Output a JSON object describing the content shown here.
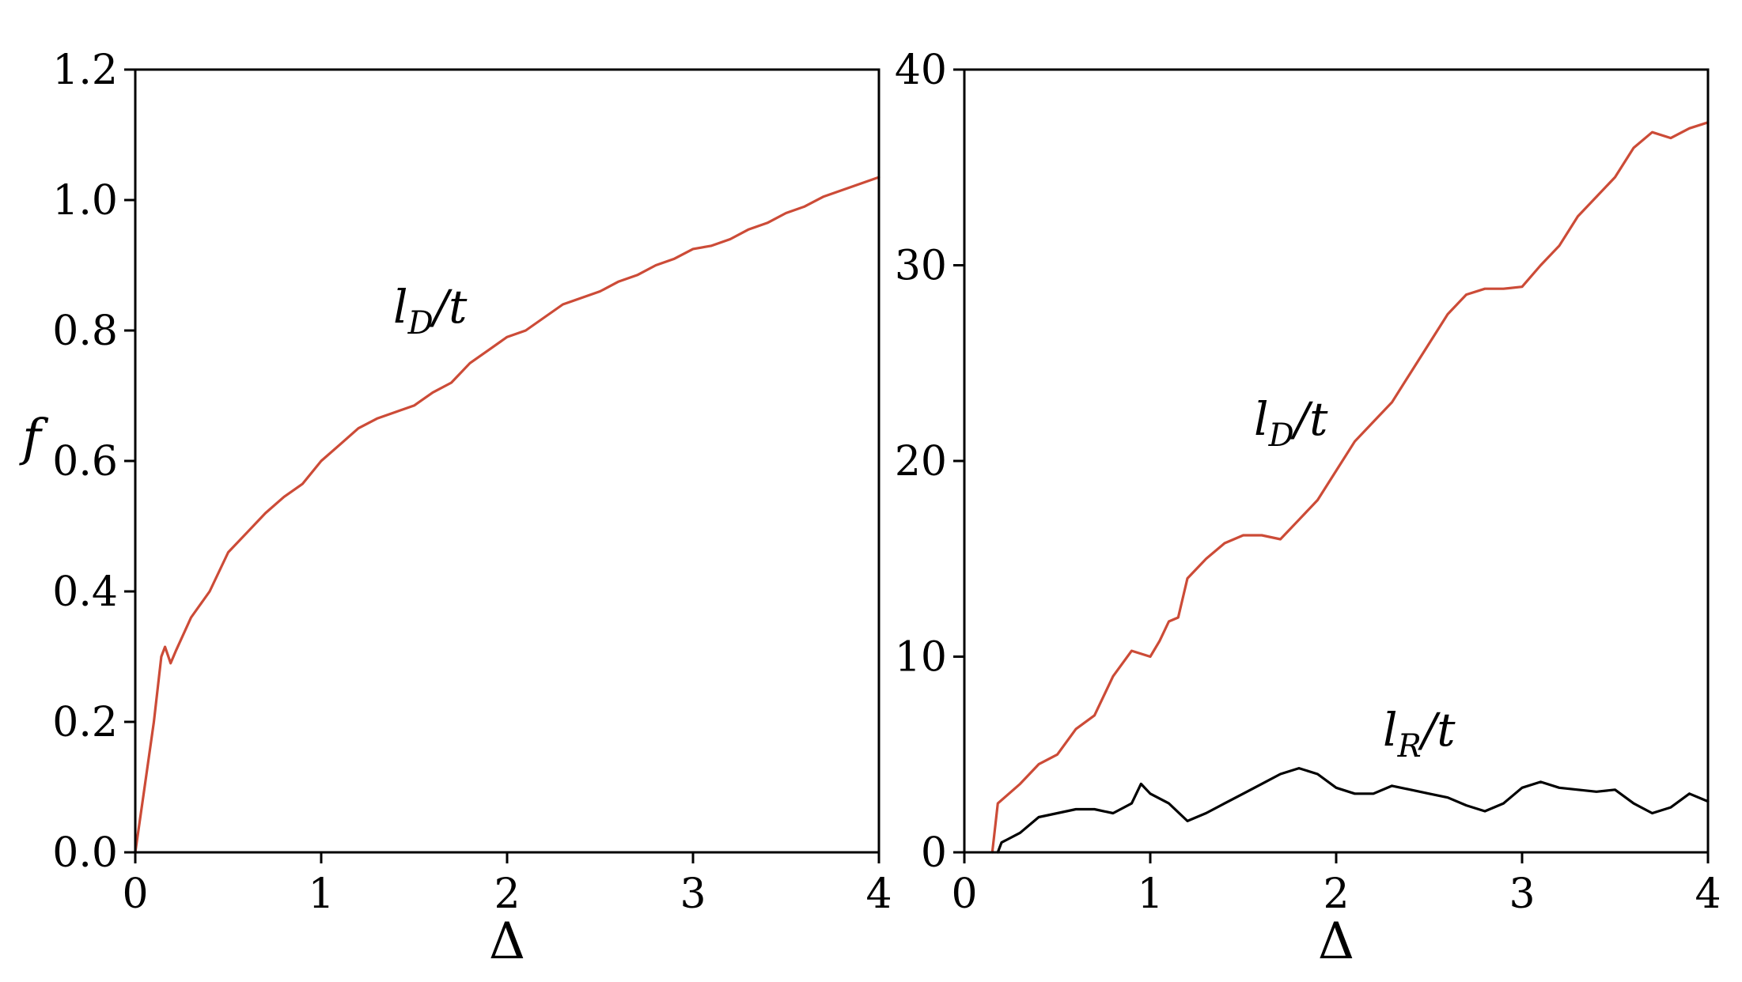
{
  "colors": {
    "ld": "#cc4b37",
    "lr": "#000000",
    "axes": "#000000"
  },
  "chart_data": [
    {
      "type": "line",
      "xlabel": "Δ",
      "ylabel": "f",
      "xlim": [
        0,
        4
      ],
      "ylim": [
        0,
        1.2
      ],
      "xticks": [
        "0",
        "1",
        "2",
        "3",
        "4"
      ],
      "yticks": [
        "0.0",
        "0.2",
        "0.4",
        "0.6",
        "0.8",
        "1.0",
        "1.2"
      ],
      "grid": false,
      "series": [
        {
          "name": "lD/t",
          "label": {
            "main": "l",
            "sub": "D",
            "tail": "/t"
          },
          "color": "#cc4b37",
          "points": [
            [
              0,
              0
            ],
            [
              0.05,
              0.1
            ],
            [
              0.1,
              0.2
            ],
            [
              0.14,
              0.3
            ],
            [
              0.16,
              0.315
            ],
            [
              0.19,
              0.29
            ],
            [
              0.22,
              0.31
            ],
            [
              0.3,
              0.36
            ],
            [
              0.4,
              0.4
            ],
            [
              0.5,
              0.46
            ],
            [
              0.6,
              0.49
            ],
            [
              0.7,
              0.52
            ],
            [
              0.8,
              0.545
            ],
            [
              0.9,
              0.565
            ],
            [
              1.0,
              0.6
            ],
            [
              1.1,
              0.625
            ],
            [
              1.2,
              0.65
            ],
            [
              1.3,
              0.665
            ],
            [
              1.4,
              0.675
            ],
            [
              1.5,
              0.685
            ],
            [
              1.6,
              0.705
            ],
            [
              1.7,
              0.72
            ],
            [
              1.8,
              0.75
            ],
            [
              1.9,
              0.77
            ],
            [
              2.0,
              0.79
            ],
            [
              2.1,
              0.8
            ],
            [
              2.2,
              0.82
            ],
            [
              2.3,
              0.84
            ],
            [
              2.4,
              0.85
            ],
            [
              2.5,
              0.86
            ],
            [
              2.6,
              0.875
            ],
            [
              2.7,
              0.885
            ],
            [
              2.8,
              0.9
            ],
            [
              2.9,
              0.91
            ],
            [
              3.0,
              0.925
            ],
            [
              3.1,
              0.93
            ],
            [
              3.2,
              0.94
            ],
            [
              3.3,
              0.955
            ],
            [
              3.4,
              0.965
            ],
            [
              3.5,
              0.98
            ],
            [
              3.6,
              0.99
            ],
            [
              3.7,
              1.005
            ],
            [
              3.8,
              1.015
            ],
            [
              3.9,
              1.025
            ],
            [
              4.0,
              1.035
            ]
          ]
        }
      ]
    },
    {
      "type": "line",
      "xlabel": "Δ",
      "ylabel": "",
      "xlim": [
        0,
        4
      ],
      "ylim": [
        0,
        40
      ],
      "xticks": [
        "0",
        "1",
        "2",
        "3",
        "4"
      ],
      "yticks": [
        "0",
        "10",
        "20",
        "30",
        "40"
      ],
      "grid": false,
      "series": [
        {
          "name": "lD/t",
          "label": {
            "main": "l",
            "sub": "D",
            "tail": "/t"
          },
          "color": "#cc4b37",
          "points": [
            [
              0.15,
              0
            ],
            [
              0.18,
              2.5
            ],
            [
              0.3,
              3.5
            ],
            [
              0.4,
              4.5
            ],
            [
              0.5,
              5
            ],
            [
              0.6,
              6.3
            ],
            [
              0.7,
              7
            ],
            [
              0.8,
              9
            ],
            [
              0.9,
              10.3
            ],
            [
              1.0,
              10
            ],
            [
              1.05,
              10.8
            ],
            [
              1.1,
              11.8
            ],
            [
              1.15,
              12
            ],
            [
              1.2,
              14
            ],
            [
              1.3,
              15
            ],
            [
              1.4,
              15.8
            ],
            [
              1.5,
              16.2
            ],
            [
              1.6,
              16.2
            ],
            [
              1.7,
              16
            ],
            [
              1.8,
              17
            ],
            [
              1.9,
              18
            ],
            [
              2.0,
              19.5
            ],
            [
              2.1,
              21
            ],
            [
              2.2,
              22
            ],
            [
              2.3,
              23
            ],
            [
              2.4,
              24.5
            ],
            [
              2.5,
              26
            ],
            [
              2.6,
              27.5
            ],
            [
              2.7,
              28.5
            ],
            [
              2.8,
              28.8
            ],
            [
              2.9,
              28.8
            ],
            [
              3.0,
              28.9
            ],
            [
              3.1,
              30
            ],
            [
              3.2,
              31
            ],
            [
              3.3,
              32.5
            ],
            [
              3.4,
              33.5
            ],
            [
              3.5,
              34.5
            ],
            [
              3.6,
              36
            ],
            [
              3.7,
              36.8
            ],
            [
              3.8,
              36.5
            ],
            [
              3.9,
              37
            ],
            [
              4.0,
              37.3
            ]
          ]
        },
        {
          "name": "lR/t",
          "label": {
            "main": "l",
            "sub": "R",
            "tail": "/t"
          },
          "color": "#000000",
          "points": [
            [
              0.18,
              0
            ],
            [
              0.2,
              0.5
            ],
            [
              0.3,
              1
            ],
            [
              0.4,
              1.8
            ],
            [
              0.5,
              2
            ],
            [
              0.6,
              2.2
            ],
            [
              0.7,
              2.2
            ],
            [
              0.8,
              2
            ],
            [
              0.9,
              2.5
            ],
            [
              0.95,
              3.5
            ],
            [
              1.0,
              3
            ],
            [
              1.1,
              2.5
            ],
            [
              1.2,
              1.6
            ],
            [
              1.3,
              2
            ],
            [
              1.4,
              2.5
            ],
            [
              1.5,
              3
            ],
            [
              1.6,
              3.5
            ],
            [
              1.7,
              4
            ],
            [
              1.8,
              4.3
            ],
            [
              1.9,
              4
            ],
            [
              2.0,
              3.3
            ],
            [
              2.1,
              3
            ],
            [
              2.2,
              3
            ],
            [
              2.3,
              3.4
            ],
            [
              2.4,
              3.2
            ],
            [
              2.5,
              3
            ],
            [
              2.6,
              2.8
            ],
            [
              2.7,
              2.4
            ],
            [
              2.8,
              2.1
            ],
            [
              2.9,
              2.5
            ],
            [
              3.0,
              3.3
            ],
            [
              3.1,
              3.6
            ],
            [
              3.2,
              3.3
            ],
            [
              3.3,
              3.2
            ],
            [
              3.4,
              3.1
            ],
            [
              3.5,
              3.2
            ],
            [
              3.6,
              2.5
            ],
            [
              3.7,
              2
            ],
            [
              3.8,
              2.3
            ],
            [
              3.9,
              3
            ],
            [
              4.0,
              2.6
            ]
          ]
        }
      ]
    }
  ]
}
